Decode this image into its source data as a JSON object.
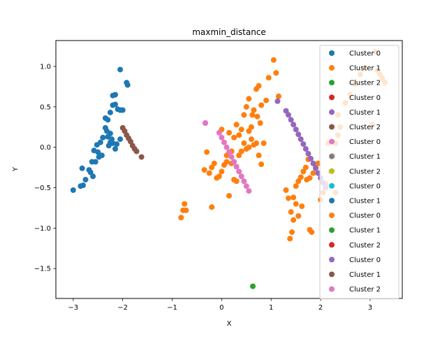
{
  "chart_data": {
    "type": "scatter",
    "title": "maxmin_distance",
    "xlabel": "X",
    "ylabel": "Y",
    "xlim": [
      -3.35,
      3.65
    ],
    "ylim": [
      -1.87,
      1.32
    ],
    "xticks": [
      -3,
      -2,
      -1,
      0,
      1,
      2,
      3
    ],
    "yticks": [
      1.0,
      0.5,
      0.0,
      -0.5,
      -1.0,
      -1.5
    ],
    "xtick_labels": [
      "−3",
      "−2",
      "−1",
      "0",
      "1",
      "2",
      "3"
    ],
    "ytick_labels": [
      "1.0",
      "0.5",
      "0.0",
      "−0.5",
      "−1.0",
      "−1.5"
    ],
    "legend_position": "top-right",
    "series": [
      {
        "name": "Cluster 0",
        "color": "#1f77b4",
        "points": [
          [
            -3.0,
            -0.53
          ],
          [
            -2.85,
            -0.48
          ],
          [
            -2.8,
            -0.47
          ],
          [
            -2.75,
            -0.4
          ],
          [
            -2.68,
            -0.28
          ],
          [
            -2.65,
            -0.31
          ],
          [
            -2.6,
            -0.36
          ],
          [
            -2.55,
            -0.18
          ],
          [
            -2.62,
            -0.18
          ],
          [
            -2.58,
            -0.04
          ],
          [
            -2.5,
            -0.06
          ],
          [
            -2.52,
            0.03
          ],
          [
            -2.45,
            0.06
          ],
          [
            -2.42,
            -0.1
          ],
          [
            -2.4,
            0.12
          ],
          [
            -2.35,
            0.24
          ],
          [
            -2.32,
            0.2
          ],
          [
            -2.3,
            0.13
          ],
          [
            -2.25,
            0.17
          ],
          [
            -2.22,
            0.1
          ],
          [
            -2.2,
            0.05
          ],
          [
            -2.15,
            -0.02
          ],
          [
            -2.12,
            0.04
          ],
          [
            -2.05,
            0.1
          ],
          [
            -2.25,
            0.06
          ],
          [
            -2.35,
            0.36
          ],
          [
            -2.3,
            0.34
          ],
          [
            -2.25,
            0.43
          ],
          [
            -2.2,
            0.52
          ],
          [
            -2.15,
            0.53
          ],
          [
            -2.1,
            0.47
          ],
          [
            -2.05,
            0.46
          ],
          [
            -2.0,
            0.46
          ],
          [
            -2.2,
            0.64
          ],
          [
            -2.15,
            0.65
          ],
          [
            -2.05,
            0.96
          ],
          [
            -1.92,
            0.8
          ],
          [
            -1.9,
            0.77
          ],
          [
            -2.82,
            -0.26
          ],
          [
            -2.48,
            -0.12
          ],
          [
            -2.28,
            0.02
          ]
        ]
      },
      {
        "name": "Cluster 1",
        "color": "#ff7f0e",
        "points": [
          [
            -0.82,
            -0.87
          ],
          [
            -0.78,
            -0.78
          ],
          [
            -0.75,
            -0.7
          ],
          [
            -0.72,
            -0.78
          ],
          [
            -0.2,
            -0.74
          ],
          [
            -0.35,
            -0.28
          ],
          [
            -0.3,
            -0.06
          ],
          [
            -0.25,
            -0.32
          ],
          [
            -0.2,
            -0.25
          ],
          [
            -0.15,
            -0.2
          ],
          [
            -0.1,
            -0.38
          ],
          [
            -0.05,
            -0.36
          ],
          [
            0.0,
            -0.3
          ],
          [
            0.05,
            -0.22
          ],
          [
            0.1,
            -0.18
          ],
          [
            0.15,
            -0.6
          ],
          [
            0.2,
            -0.2
          ],
          [
            0.25,
            -0.4
          ],
          [
            0.3,
            -0.42
          ],
          [
            0.35,
            -0.1
          ],
          [
            0.4,
            -0.05
          ],
          [
            0.45,
            0.05
          ],
          [
            0.5,
            -0.02
          ],
          [
            0.55,
            0.0
          ],
          [
            0.6,
            0.1
          ],
          [
            0.65,
            0.03
          ],
          [
            0.7,
            0.05
          ],
          [
            0.75,
            -0.1
          ],
          [
            0.8,
            -0.21
          ],
          [
            0.85,
            0.05
          ],
          [
            0.0,
            0.22
          ],
          [
            0.15,
            0.18
          ],
          [
            0.25,
            0.12
          ],
          [
            0.3,
            0.28
          ],
          [
            0.4,
            0.22
          ],
          [
            0.45,
            0.4
          ],
          [
            0.5,
            0.5
          ],
          [
            0.55,
            0.6
          ],
          [
            0.6,
            0.25
          ],
          [
            0.65,
            0.46
          ],
          [
            0.7,
            0.72
          ],
          [
            0.75,
            0.76
          ],
          [
            0.8,
            0.52
          ],
          [
            0.9,
            0.58
          ],
          [
            0.95,
            0.86
          ],
          [
            1.05,
            1.08
          ],
          [
            1.1,
            0.92
          ],
          [
            1.15,
            0.63
          ],
          [
            0.62,
            0.4
          ],
          [
            0.72,
            0.38
          ],
          [
            0.78,
            0.3
          ],
          [
            0.35,
            0.15
          ],
          [
            0.55,
            0.2
          ],
          [
            0.2,
            -0.05
          ],
          [
            0.1,
            -0.1
          ],
          [
            1.3,
            -0.53
          ],
          [
            1.35,
            -0.63
          ],
          [
            1.4,
            -0.8
          ],
          [
            1.45,
            -0.9
          ],
          [
            1.38,
            -1.13
          ],
          [
            1.42,
            -1.05
          ],
          [
            1.45,
            -0.62
          ],
          [
            1.5,
            -0.48
          ],
          [
            1.55,
            -0.42
          ],
          [
            1.6,
            -0.37
          ],
          [
            1.65,
            -0.3
          ],
          [
            1.7,
            -0.25
          ],
          [
            1.75,
            -0.15
          ],
          [
            1.62,
            -0.73
          ],
          [
            1.72,
            -0.4
          ],
          [
            1.78,
            -0.38
          ],
          [
            1.85,
            -0.32
          ],
          [
            1.9,
            -0.25
          ],
          [
            1.95,
            -0.2
          ],
          [
            1.82,
            -1.05
          ],
          [
            1.78,
            -1.02
          ],
          [
            2.0,
            -0.65
          ],
          [
            2.05,
            -0.56
          ],
          [
            1.55,
            -0.85
          ],
          [
            2.1,
            -0.45
          ],
          [
            2.2,
            -0.3
          ],
          [
            2.25,
            -0.1
          ],
          [
            2.3,
            0.05
          ],
          [
            2.35,
            0.15
          ],
          [
            2.4,
            0.25
          ],
          [
            2.5,
            0.55
          ],
          [
            2.6,
            0.65
          ],
          [
            2.7,
            0.78
          ],
          [
            2.8,
            0.9
          ],
          [
            2.9,
            0.98
          ],
          [
            3.1,
            1.18
          ],
          [
            3.15,
            0.95
          ],
          [
            3.2,
            0.9
          ],
          [
            3.25,
            0.85
          ],
          [
            3.3,
            0.8
          ],
          [
            3.05,
            0.28
          ],
          [
            2.15,
            0.05
          ],
          [
            2.35,
            0.4
          ],
          [
            1.5,
            -0.7
          ],
          [
            2.3,
            -0.56
          ]
        ]
      },
      {
        "name": "Cluster 2",
        "color": "#2ca02c",
        "points": [
          [
            0.63,
            -1.72
          ]
        ]
      },
      {
        "name": "Cluster 0",
        "color": "#d62728",
        "points": []
      },
      {
        "name": "Cluster 1",
        "color": "#9467bd",
        "points": [
          [
            1.13,
            0.57
          ],
          [
            1.3,
            0.45
          ],
          [
            1.35,
            0.4
          ],
          [
            1.4,
            0.34
          ],
          [
            1.45,
            0.28
          ],
          [
            1.5,
            0.22
          ],
          [
            1.55,
            0.16
          ],
          [
            1.6,
            0.1
          ],
          [
            1.65,
            0.04
          ],
          [
            1.7,
            -0.02
          ],
          [
            1.75,
            -0.08
          ],
          [
            1.8,
            -0.14
          ],
          [
            1.85,
            -0.2
          ],
          [
            1.9,
            -0.26
          ],
          [
            1.95,
            -0.32
          ],
          [
            2.0,
            -0.38
          ],
          [
            2.05,
            -0.44
          ],
          [
            2.1,
            -0.5
          ],
          [
            -0.33,
            0.3
          ]
        ]
      },
      {
        "name": "Cluster 2",
        "color": "#8c564b",
        "points": [
          [
            -2.0,
            0.24
          ],
          [
            -1.96,
            0.2
          ],
          [
            -1.92,
            0.15
          ],
          [
            -1.88,
            0.11
          ],
          [
            -1.84,
            0.07
          ],
          [
            -1.8,
            0.02
          ],
          [
            -1.76,
            -0.02
          ],
          [
            -1.72,
            -0.05
          ],
          [
            -1.62,
            -0.12
          ]
        ]
      },
      {
        "name": "Cluster 0",
        "color": "#e377c2",
        "points": [
          [
            -0.05,
            0.18
          ],
          [
            0.0,
            0.12
          ],
          [
            0.05,
            0.06
          ],
          [
            0.1,
            0.0
          ],
          [
            0.15,
            -0.06
          ],
          [
            0.2,
            -0.12
          ],
          [
            0.25,
            -0.18
          ],
          [
            0.3,
            -0.24
          ],
          [
            0.35,
            -0.3
          ],
          [
            0.4,
            -0.36
          ],
          [
            0.45,
            -0.42
          ],
          [
            0.5,
            -0.48
          ],
          [
            0.55,
            -0.54
          ],
          [
            -0.33,
            0.3
          ]
        ]
      },
      {
        "name": "Cluster 1",
        "color": "#7f7f7f",
        "points": []
      },
      {
        "name": "Cluster 2",
        "color": "#bcbd22",
        "points": []
      },
      {
        "name": "Cluster 0",
        "color": "#17becf",
        "points": []
      },
      {
        "name": "Cluster 1",
        "color": "#1f77b4",
        "points": []
      },
      {
        "name": "Cluster 0",
        "color": "#ff7f0e",
        "points": []
      },
      {
        "name": "Cluster 1",
        "color": "#2ca02c",
        "points": []
      },
      {
        "name": "Cluster 2",
        "color": "#d62728",
        "points": []
      },
      {
        "name": "Cluster 0",
        "color": "#9467bd",
        "points": []
      },
      {
        "name": "Cluster 1",
        "color": "#8c564b",
        "points": []
      },
      {
        "name": "Cluster 2",
        "color": "#e377c2",
        "points": []
      }
    ]
  }
}
